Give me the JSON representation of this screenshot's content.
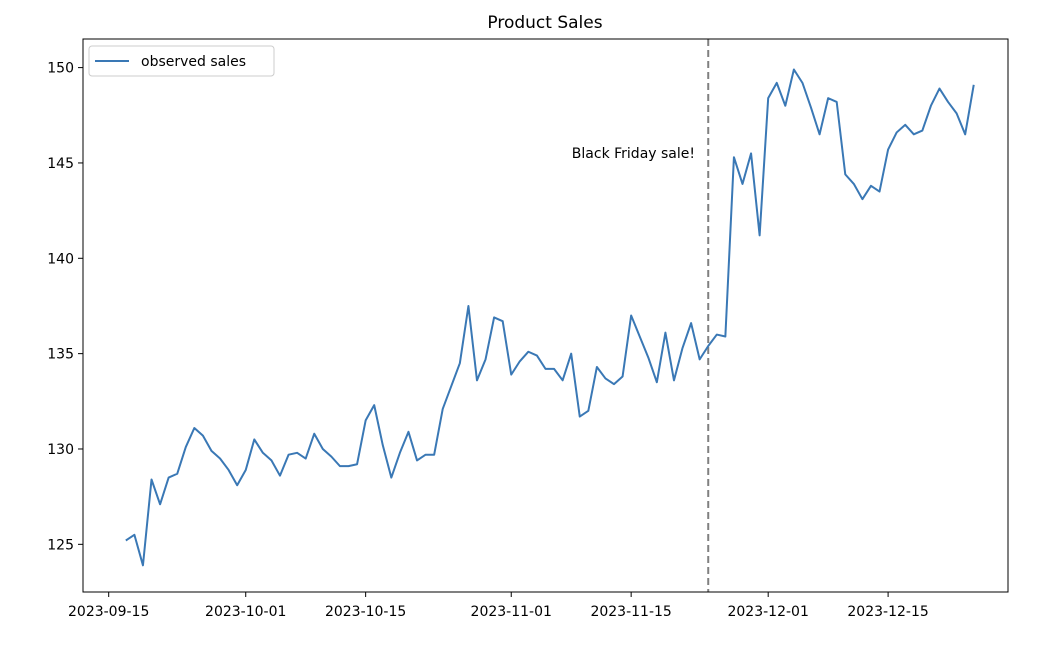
{
  "chart_data": {
    "type": "line",
    "title": "Product Sales",
    "xlabel": "",
    "ylabel": "",
    "x_start": "2023-09-17",
    "x_step_days": 1,
    "xlim": [
      "2023-09-12",
      "2023-12-29"
    ],
    "ylim": [
      122.5,
      151.5
    ],
    "x_tick_labels": [
      "2023-09-15",
      "2023-10-01",
      "2023-10-15",
      "2023-11-01",
      "2023-11-15",
      "2023-12-01",
      "2023-12-15"
    ],
    "y_ticks": [
      125,
      130,
      135,
      140,
      145,
      150
    ],
    "grid": false,
    "legend_position": "top-left",
    "series": [
      {
        "name": "observed sales",
        "color": "#3a78b5",
        "values": [
          125.2,
          125.5,
          123.9,
          128.4,
          127.1,
          128.5,
          128.7,
          130.1,
          131.1,
          130.7,
          129.9,
          129.5,
          128.9,
          128.1,
          128.9,
          130.5,
          129.8,
          129.4,
          128.6,
          129.7,
          129.8,
          129.5,
          130.8,
          130.0,
          129.6,
          129.1,
          129.1,
          129.2,
          131.5,
          132.3,
          130.2,
          128.5,
          129.8,
          130.9,
          129.4,
          129.7,
          129.7,
          132.1,
          133.3,
          134.5,
          137.5,
          133.6,
          134.7,
          136.9,
          136.7,
          133.9,
          134.6,
          135.1,
          134.9,
          134.2,
          134.2,
          133.6,
          135.0,
          131.7,
          132.0,
          134.3,
          133.7,
          133.4,
          133.8,
          137.0,
          135.9,
          134.8,
          133.5,
          136.1,
          133.6,
          135.3,
          136.6,
          134.7,
          135.4,
          136.0,
          135.9,
          145.3,
          143.9,
          145.5,
          141.2,
          148.4,
          149.2,
          148.0,
          149.9,
          149.2,
          147.9,
          146.5,
          148.4,
          148.2,
          144.4,
          143.9,
          143.1,
          143.8,
          143.5,
          145.7,
          146.6,
          147.0,
          146.5,
          146.7,
          148.0,
          148.9,
          148.2,
          147.6,
          146.5,
          149.1
        ]
      }
    ],
    "annotations": [
      {
        "type": "vline",
        "x": "2023-11-24",
        "color": "#808080",
        "style": "dashed"
      },
      {
        "type": "text",
        "x": "2023-11-24",
        "y": 145.2,
        "text": "Black Friday sale!"
      }
    ]
  }
}
